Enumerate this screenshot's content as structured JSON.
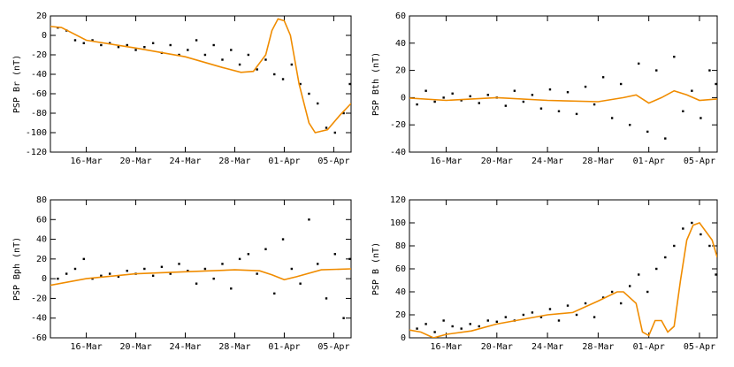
{
  "chart_data": [
    {
      "type": "scatter",
      "ylabel": "PSP Br (nT)",
      "xlim": [
        13.1,
        37.4
      ],
      "ylim": [
        -120,
        20
      ],
      "xticks": [
        {
          "value": 16,
          "label": "16-Mar"
        },
        {
          "value": 20,
          "label": "20-Mar"
        },
        {
          "value": 24,
          "label": "24-Mar"
        },
        {
          "value": 28,
          "label": "28-Mar"
        },
        {
          "value": 32,
          "label": "01-Apr"
        },
        {
          "value": 36,
          "label": "05-Apr"
        }
      ],
      "yticks": [
        -120,
        -100,
        -80,
        -60,
        -40,
        -20,
        0,
        20
      ],
      "series": [
        {
          "type": "scatter",
          "color": "#000000",
          "x": [
            13.0,
            13.7,
            14.4,
            15.1,
            15.8,
            16.5,
            17.2,
            17.9,
            18.6,
            19.3,
            20.0,
            20.7,
            21.4,
            22.1,
            22.8,
            23.5,
            24.2,
            24.9,
            25.6,
            26.3,
            27.0,
            27.7,
            28.4,
            29.1,
            29.8,
            30.5,
            31.2,
            31.9,
            32.6,
            33.3,
            34.0,
            34.7,
            35.4,
            36.1,
            36.8,
            37.3
          ],
          "values": [
            5,
            8,
            5,
            -5,
            -8,
            -5,
            -10,
            -8,
            -12,
            -10,
            -15,
            -12,
            -8,
            -18,
            -10,
            -20,
            -15,
            -5,
            -20,
            -10,
            -25,
            -15,
            -30,
            -20,
            -35,
            -25,
            -40,
            -45,
            -30,
            -50,
            -60,
            -70,
            -95,
            -100,
            -80,
            -50
          ]
        },
        {
          "type": "line",
          "color": "#f08c00",
          "x": [
            12.5,
            14,
            16,
            20,
            24,
            27,
            28.5,
            29.5,
            30.5,
            31,
            31.5,
            32,
            32.5,
            33.2,
            34,
            34.5,
            35.5,
            36.5,
            37.4
          ],
          "values": [
            10,
            8,
            -5,
            -13,
            -22,
            -33,
            -38,
            -37,
            -20,
            5,
            17,
            15,
            0,
            -50,
            -90,
            -100,
            -97,
            -82,
            -70
          ]
        }
      ]
    },
    {
      "type": "scatter",
      "ylabel": "PSP Bth (nT)",
      "xlim": [
        13.1,
        37.4
      ],
      "ylim": [
        -40,
        60
      ],
      "xticks": [
        {
          "value": 16,
          "label": "16-Mar"
        },
        {
          "value": 20,
          "label": "20-Mar"
        },
        {
          "value": 24,
          "label": "24-Mar"
        },
        {
          "value": 28,
          "label": "28-Mar"
        },
        {
          "value": 32,
          "label": "01-Apr"
        },
        {
          "value": 36,
          "label": "05-Apr"
        }
      ],
      "yticks": [
        -40,
        -20,
        0,
        20,
        40,
        60
      ],
      "series": [
        {
          "type": "scatter",
          "color": "#000000",
          "x": [
            13.0,
            13.7,
            14.4,
            15.1,
            15.8,
            16.5,
            17.2,
            17.9,
            18.6,
            19.3,
            20.0,
            20.7,
            21.4,
            22.1,
            22.8,
            23.5,
            24.2,
            24.9,
            25.6,
            26.3,
            27.0,
            27.7,
            28.4,
            29.1,
            29.8,
            30.5,
            31.2,
            31.9,
            32.6,
            33.3,
            34.0,
            34.7,
            35.4,
            36.1,
            36.8,
            37.3
          ],
          "values": [
            2,
            -5,
            5,
            -3,
            0,
            3,
            -2,
            1,
            -4,
            2,
            0,
            -6,
            5,
            -3,
            2,
            -8,
            6,
            -10,
            4,
            -12,
            8,
            -5,
            15,
            -15,
            10,
            -20,
            25,
            -25,
            20,
            -30,
            30,
            -10,
            5,
            -15,
            20,
            10
          ]
        },
        {
          "type": "line",
          "color": "#f08c00",
          "x": [
            12.5,
            16,
            20,
            24,
            28,
            30,
            31,
            32,
            33,
            34,
            35,
            36,
            37.4
          ],
          "values": [
            0,
            -2,
            0,
            -2,
            -3,
            0,
            2,
            -4,
            0,
            5,
            2,
            -2,
            -1
          ]
        }
      ]
    },
    {
      "type": "scatter",
      "ylabel": "PSP Bph (nT)",
      "xlim": [
        13.1,
        37.4
      ],
      "ylim": [
        -60,
        80
      ],
      "xticks": [
        {
          "value": 16,
          "label": "16-Mar"
        },
        {
          "value": 20,
          "label": "20-Mar"
        },
        {
          "value": 24,
          "label": "24-Mar"
        },
        {
          "value": 28,
          "label": "28-Mar"
        },
        {
          "value": 32,
          "label": "01-Apr"
        },
        {
          "value": 36,
          "label": "05-Apr"
        }
      ],
      "yticks": [
        -60,
        -40,
        -20,
        0,
        20,
        40,
        60,
        80
      ],
      "series": [
        {
          "type": "scatter",
          "color": "#000000",
          "x": [
            13.0,
            13.7,
            14.4,
            15.1,
            15.8,
            16.5,
            17.2,
            17.9,
            18.6,
            19.3,
            20.0,
            20.7,
            21.4,
            22.1,
            22.8,
            23.5,
            24.2,
            24.9,
            25.6,
            26.3,
            27.0,
            27.7,
            28.4,
            29.1,
            29.8,
            30.5,
            31.2,
            31.9,
            32.6,
            33.3,
            34.0,
            34.7,
            35.4,
            36.1,
            36.8,
            37.3
          ],
          "values": [
            -5,
            0,
            5,
            10,
            20,
            0,
            3,
            5,
            2,
            8,
            5,
            10,
            3,
            12,
            5,
            15,
            8,
            -5,
            10,
            0,
            15,
            -10,
            20,
            25,
            5,
            30,
            -15,
            40,
            10,
            -5,
            60,
            15,
            -20,
            25,
            -40,
            20
          ]
        },
        {
          "type": "line",
          "color": "#f08c00",
          "x": [
            12.5,
            16,
            20,
            24,
            28,
            30,
            31,
            32,
            33,
            35,
            37.4
          ],
          "values": [
            -8,
            0,
            5,
            7,
            9,
            8,
            4,
            -1,
            2,
            9,
            10
          ]
        }
      ]
    },
    {
      "type": "scatter",
      "ylabel": "PSP B (nT)",
      "xlim": [
        13.1,
        37.4
      ],
      "ylim": [
        0,
        120
      ],
      "xticks": [
        {
          "value": 16,
          "label": "16-Mar"
        },
        {
          "value": 20,
          "label": "20-Mar"
        },
        {
          "value": 24,
          "label": "24-Mar"
        },
        {
          "value": 28,
          "label": "28-Mar"
        },
        {
          "value": 32,
          "label": "01-Apr"
        },
        {
          "value": 36,
          "label": "05-Apr"
        }
      ],
      "yticks": [
        0,
        20,
        40,
        60,
        80,
        100,
        120
      ],
      "series": [
        {
          "type": "scatter",
          "color": "#000000",
          "x": [
            13.0,
            13.7,
            14.4,
            15.1,
            15.8,
            16.5,
            17.2,
            17.9,
            18.6,
            19.3,
            20.0,
            20.7,
            21.4,
            22.1,
            22.8,
            23.5,
            24.2,
            24.9,
            25.6,
            26.3,
            27.0,
            27.7,
            28.4,
            29.1,
            29.8,
            30.5,
            31.2,
            31.9,
            32.6,
            33.3,
            34.0,
            34.7,
            35.4,
            36.1,
            36.8,
            37.3
          ],
          "values": [
            10,
            8,
            12,
            5,
            15,
            10,
            8,
            12,
            10,
            15,
            14,
            18,
            15,
            20,
            22,
            18,
            25,
            15,
            28,
            20,
            30,
            18,
            35,
            40,
            30,
            45,
            55,
            40,
            60,
            70,
            80,
            95,
            100,
            90,
            80,
            55
          ]
        },
        {
          "type": "line",
          "color": "#f08c00",
          "x": [
            12.5,
            14,
            15,
            16,
            18,
            20,
            24,
            26,
            28,
            29.5,
            30,
            31,
            31.5,
            32,
            32.5,
            33,
            33.5,
            34,
            34.5,
            35,
            35.5,
            36,
            37,
            37.4
          ],
          "values": [
            8,
            5,
            0,
            3,
            6,
            12,
            20,
            22,
            32,
            40,
            40,
            30,
            5,
            2,
            15,
            15,
            5,
            10,
            50,
            85,
            98,
            100,
            85,
            70
          ]
        }
      ]
    }
  ]
}
